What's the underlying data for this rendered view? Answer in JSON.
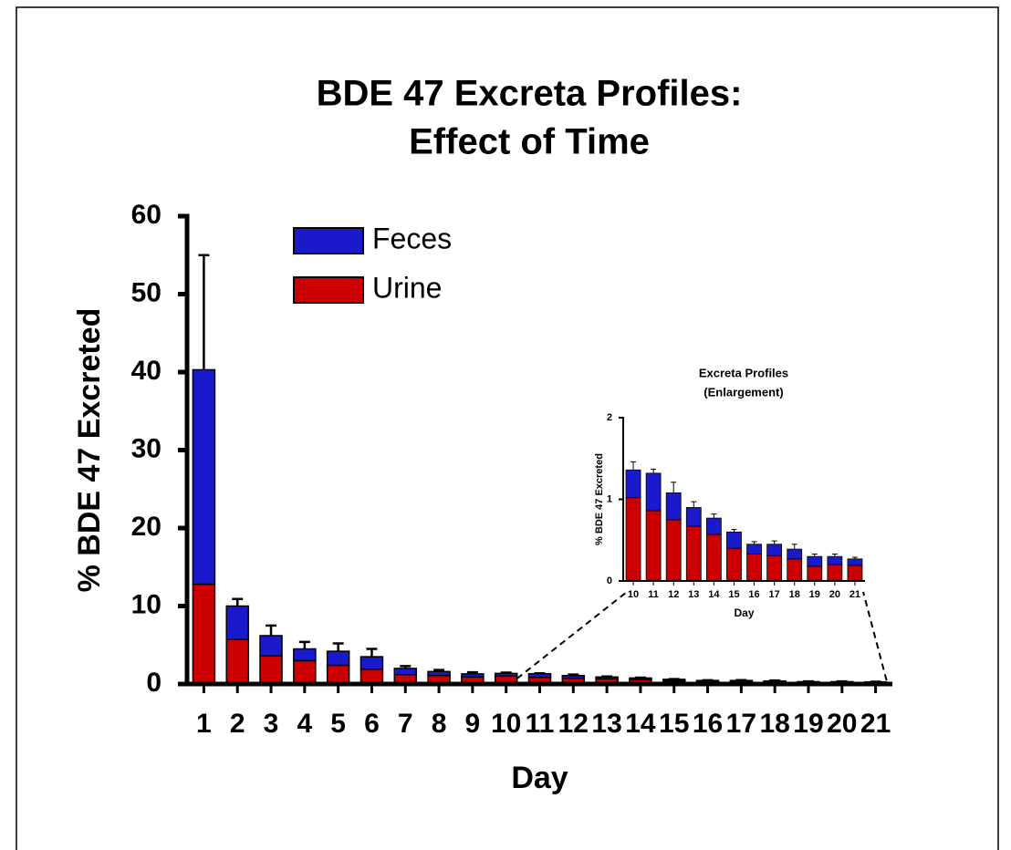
{
  "chart_data": [
    {
      "type": "bar",
      "stacked": true,
      "legend": true,
      "title": [
        "BDE 47 Excreta Profiles:",
        "Effect of Time"
      ],
      "x_label": "Day",
      "y_label": "% BDE 47 Excreted",
      "categories": [
        "1",
        "2",
        "3",
        "4",
        "5",
        "6",
        "7",
        "8",
        "9",
        "10",
        "11",
        "12",
        "13",
        "14",
        "15",
        "16",
        "17",
        "18",
        "19",
        "20",
        "21"
      ],
      "series": [
        {
          "name": "Urine",
          "color": "#cc0000",
          "values": [
            12.8,
            5.7,
            3.6,
            3.0,
            2.4,
            1.9,
            1.2,
            1.1,
            0.9,
            1.02,
            0.86,
            0.75,
            0.67,
            0.57,
            0.4,
            0.33,
            0.31,
            0.27,
            0.18,
            0.2,
            0.19
          ]
        },
        {
          "name": "Feces",
          "color": "#1a1acc",
          "values": [
            27.5,
            4.3,
            2.6,
            1.5,
            1.8,
            1.6,
            0.8,
            0.5,
            0.4,
            0.34,
            0.46,
            0.33,
            0.23,
            0.2,
            0.2,
            0.12,
            0.14,
            0.12,
            0.12,
            0.1,
            0.08
          ],
          "errors": [
            14.7,
            0.9,
            1.3,
            0.9,
            1.0,
            1.0,
            0.3,
            0.2,
            0.2,
            0.1,
            0.05,
            0.13,
            0.07,
            0.05,
            0.03,
            0.03,
            0.04,
            0.06,
            0.03,
            0.03,
            0.02
          ]
        }
      ],
      "ylim": [
        0,
        60
      ],
      "yticks": [
        0,
        10,
        20,
        30,
        40,
        50,
        60
      ]
    },
    {
      "type": "bar",
      "stacked": true,
      "legend": false,
      "title": [
        "Excreta Profiles",
        "(Enlargement)"
      ],
      "x_label": "Day",
      "y_label": "% BDE 47 Excreted",
      "categories": [
        "10",
        "11",
        "12",
        "13",
        "14",
        "15",
        "16",
        "17",
        "18",
        "19",
        "20",
        "21"
      ],
      "series": [
        {
          "color": "#cc0000",
          "values": [
            1.02,
            0.86,
            0.75,
            0.67,
            0.57,
            0.4,
            0.33,
            0.31,
            0.27,
            0.18,
            0.2,
            0.19
          ]
        },
        {
          "color": "#1a1acc",
          "values": [
            0.34,
            0.46,
            0.33,
            0.23,
            0.2,
            0.2,
            0.12,
            0.14,
            0.12,
            0.12,
            0.1,
            0.08
          ],
          "errors": [
            0.1,
            0.05,
            0.13,
            0.07,
            0.05,
            0.03,
            0.03,
            0.04,
            0.06,
            0.03,
            0.03,
            0.02
          ]
        }
      ],
      "ylim": [
        0,
        2
      ],
      "yticks": [
        0,
        1,
        2
      ]
    }
  ]
}
